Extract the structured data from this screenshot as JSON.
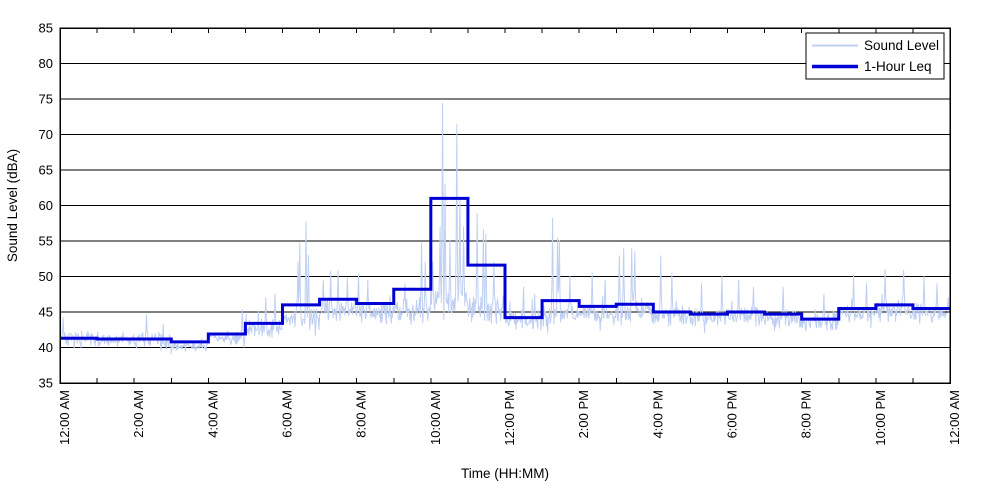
{
  "figure": {
    "background": "#ffffff",
    "plot_border_color": "#000000",
    "grid_color": "#000000",
    "text_color": "#000000"
  },
  "chart_data": {
    "type": "line",
    "title": "",
    "xlabel": "Time (HH:MM)",
    "ylabel": "Sound Level (dBA)",
    "ylim": [
      35,
      85
    ],
    "xlim_hours": [
      0,
      24
    ],
    "y_ticks": [
      35,
      40,
      45,
      50,
      55,
      60,
      65,
      70,
      75,
      80,
      85
    ],
    "x_tick_hours": [
      0,
      2,
      4,
      6,
      8,
      10,
      12,
      14,
      16,
      18,
      20,
      22,
      24
    ],
    "x_minor_tick_every_hours": 1,
    "x_tick_labels": [
      "12:00 AM",
      "2:00 AM",
      "4:00 AM",
      "6:00 AM",
      "8:00 AM",
      "10:00 AM",
      "12:00 PM",
      "2:00 PM",
      "4:00 PM",
      "6:00 PM",
      "8:00 PM",
      "10:00 PM",
      "12:00 AM"
    ],
    "grid": "horizontal-solid",
    "legend_position": "top-right",
    "series": [
      {
        "name": "Sound Level",
        "kind": "noisy-trace",
        "color": "#bfcff2",
        "stroke_width": 1,
        "sampling": "approx 1-minute samples over 24 h",
        "hourly_envelope_base": [
          41.2,
          41.0,
          41.0,
          40.2,
          41.4,
          42.6,
          44.0,
          45.3,
          45.0,
          45.2,
          46.5,
          45.5,
          43.8,
          44.6,
          44.8,
          45.2,
          44.6,
          44.2,
          44.4,
          44.2,
          43.6,
          44.6,
          45.2,
          44.9
        ],
        "hourly_envelope_amp": [
          1.3,
          1.1,
          1.2,
          1.0,
          1.2,
          1.5,
          1.6,
          1.9,
          1.9,
          2.0,
          2.6,
          2.2,
          1.6,
          1.8,
          1.7,
          1.8,
          1.7,
          1.5,
          1.5,
          1.5,
          1.5,
          1.7,
          1.8,
          1.6
        ],
        "notable_spikes_hour_value": [
          [
            0.08,
            44.2
          ],
          [
            2.33,
            44.6
          ],
          [
            4.92,
            45.3
          ],
          [
            5.55,
            47.0
          ],
          [
            5.8,
            47.5
          ],
          [
            6.42,
            52.0
          ],
          [
            6.47,
            54.7
          ],
          [
            6.63,
            57.7
          ],
          [
            6.7,
            53.0
          ],
          [
            7.1,
            49.5
          ],
          [
            7.3,
            50.7
          ],
          [
            7.5,
            50.8
          ],
          [
            7.75,
            49.8
          ],
          [
            8.05,
            50.3
          ],
          [
            8.3,
            49.5
          ],
          [
            9.3,
            49.0
          ],
          [
            9.75,
            54.7
          ],
          [
            9.85,
            52.0
          ],
          [
            10.05,
            52.0
          ],
          [
            10.25,
            57.0
          ],
          [
            10.32,
            74.4
          ],
          [
            10.38,
            63.0
          ],
          [
            10.52,
            55.0
          ],
          [
            10.7,
            71.4
          ],
          [
            10.78,
            61.0
          ],
          [
            10.88,
            57.0
          ],
          [
            11.25,
            58.9
          ],
          [
            11.42,
            56.6
          ],
          [
            11.48,
            56.0
          ],
          [
            11.7,
            52.0
          ],
          [
            12.5,
            48.5
          ],
          [
            12.8,
            47.5
          ],
          [
            13.28,
            58.2
          ],
          [
            13.42,
            55.4
          ],
          [
            13.47,
            55.0
          ],
          [
            13.75,
            50.0
          ],
          [
            14.35,
            50.5
          ],
          [
            14.7,
            49.5
          ],
          [
            15.08,
            52.9
          ],
          [
            15.2,
            54.0
          ],
          [
            15.42,
            53.9
          ],
          [
            15.5,
            53.5
          ],
          [
            16.2,
            52.9
          ],
          [
            16.5,
            50.5
          ],
          [
            17.3,
            49.0
          ],
          [
            17.85,
            50.0
          ],
          [
            18.3,
            49.5
          ],
          [
            18.7,
            48.5
          ],
          [
            19.5,
            48.5
          ],
          [
            20.6,
            47.5
          ],
          [
            21.4,
            50.2
          ],
          [
            21.75,
            49.0
          ],
          [
            22.25,
            51.0
          ],
          [
            22.75,
            50.9
          ],
          [
            23.3,
            50.0
          ],
          [
            23.65,
            49.0
          ],
          [
            23.95,
            47.0
          ]
        ]
      },
      {
        "name": "1-Hour Leq",
        "kind": "step-hourly",
        "color": "#0000d6",
        "stroke_width": 3,
        "hourly_values": [
          41.3,
          41.2,
          41.2,
          40.8,
          41.9,
          43.4,
          46.0,
          46.8,
          46.2,
          48.2,
          61.0,
          51.6,
          44.2,
          46.6,
          45.8,
          46.1,
          45.0,
          44.7,
          45.0,
          44.7,
          44.0,
          45.5,
          46.0,
          45.5
        ]
      }
    ]
  }
}
